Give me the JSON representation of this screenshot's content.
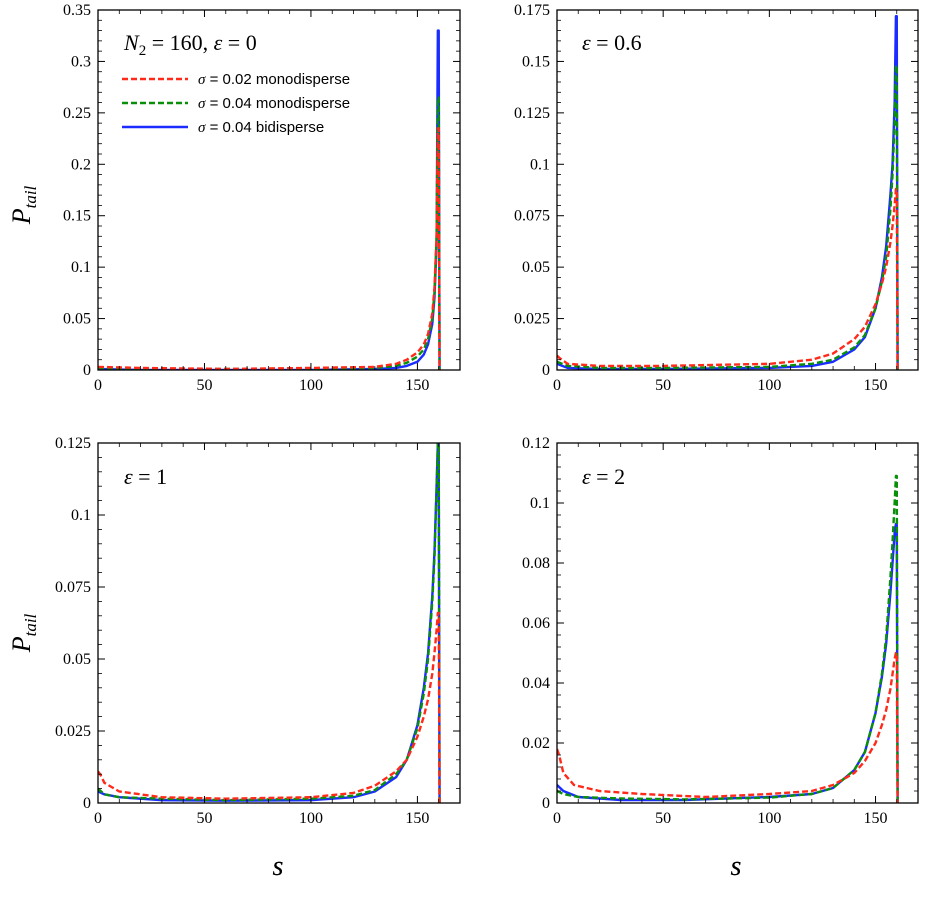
{
  "colors": {
    "red": "#ff2a1a",
    "green": "#0a8f0a",
    "blue": "#1a2cff"
  },
  "legend": [
    {
      "greek": "σ",
      "label": " = 0.02 monodisperse",
      "color": "#ff2a1a",
      "style": "dashed"
    },
    {
      "greek": "σ",
      "label": " = 0.04 monodisperse",
      "color": "#0a8f0a",
      "style": "dashed"
    },
    {
      "greek": "σ",
      "label": " = 0.04 bidisperse",
      "color": "#1a2cff",
      "style": "solid"
    }
  ],
  "chart_data": [
    {
      "type": "line",
      "annotation": {
        "prefix": "N",
        "sub": "2",
        "text": " = 160, ",
        "greek": "ε",
        "tail": " = 0"
      },
      "ylabel": {
        "main": "P",
        "sub": "tail"
      },
      "xlabel": "",
      "xlim": [
        0,
        170
      ],
      "ylim": [
        0,
        0.35
      ],
      "xticks": [
        0,
        50,
        100,
        150
      ],
      "yticks": [
        0,
        0.05,
        0.1,
        0.15,
        0.2,
        0.25,
        0.3,
        0.35
      ],
      "ytick_labels": [
        "0",
        "0.05",
        "0.1",
        "0.15",
        "0.2",
        "0.25",
        "0.3",
        "0.35"
      ],
      "legend": "top-left",
      "series": [
        {
          "color": "blue",
          "style": "solid",
          "x": [
            0,
            20,
            60,
            100,
            130,
            140,
            145,
            150,
            153,
            155,
            157,
            158,
            159,
            159.6,
            160,
            160.4
          ],
          "y": [
            0.001,
            0,
            0,
            0,
            0.001,
            0.002,
            0.004,
            0.008,
            0.015,
            0.025,
            0.045,
            0.07,
            0.12,
            0.33,
            0.33,
            0
          ]
        },
        {
          "color": "green",
          "style": "dashed",
          "x": [
            0,
            20,
            60,
            100,
            130,
            140,
            145,
            150,
            153,
            155,
            157,
            158,
            159,
            159.6,
            160,
            160.4
          ],
          "y": [
            0.002,
            0.001,
            0.001,
            0.001,
            0.002,
            0.004,
            0.007,
            0.013,
            0.02,
            0.03,
            0.05,
            0.075,
            0.13,
            0.265,
            0.265,
            0
          ]
        },
        {
          "color": "red",
          "style": "dashed",
          "x": [
            0,
            20,
            60,
            100,
            130,
            140,
            145,
            150,
            153,
            155,
            157,
            158,
            159,
            159.6,
            160,
            160.4
          ],
          "y": [
            0.003,
            0.002,
            0.001,
            0.002,
            0.003,
            0.006,
            0.01,
            0.017,
            0.025,
            0.035,
            0.055,
            0.08,
            0.13,
            0.235,
            0.235,
            0
          ]
        }
      ]
    },
    {
      "type": "line",
      "annotation": {
        "prefix": "",
        "sub": "",
        "text": "",
        "greek": "ε",
        "tail": " = 0.6"
      },
      "ylabel": {
        "main": "",
        "sub": ""
      },
      "xlabel": "s",
      "xlim": [
        0,
        170
      ],
      "ylim": [
        0,
        0.175
      ],
      "xticks": [
        0,
        50,
        100,
        150
      ],
      "yticks": [
        0,
        0.025,
        0.05,
        0.075,
        0.1,
        0.125,
        0.15,
        0.175
      ],
      "ytick_labels": [
        "0",
        "0.025",
        "0.05",
        "0.075",
        "0.1",
        "0.125",
        "0.15",
        "0.175"
      ],
      "legend": "none",
      "series": [
        {
          "color": "blue",
          "style": "solid",
          "x": [
            0,
            5,
            20,
            50,
            100,
            120,
            130,
            140,
            145,
            150,
            153,
            155,
            157,
            158,
            159,
            159.6,
            160,
            160.4
          ],
          "y": [
            0.003,
            0.001,
            0.0005,
            0.0005,
            0.001,
            0.002,
            0.004,
            0.01,
            0.016,
            0.03,
            0.045,
            0.06,
            0.085,
            0.1,
            0.13,
            0.172,
            0.172,
            0
          ]
        },
        {
          "color": "green",
          "style": "dashed",
          "x": [
            0,
            5,
            20,
            50,
            100,
            120,
            130,
            140,
            145,
            150,
            153,
            155,
            157,
            158,
            159,
            159.6,
            160,
            160.4
          ],
          "y": [
            0.004,
            0.002,
            0.001,
            0.001,
            0.0015,
            0.003,
            0.005,
            0.011,
            0.017,
            0.03,
            0.043,
            0.055,
            0.078,
            0.095,
            0.12,
            0.148,
            0.148,
            0
          ]
        },
        {
          "color": "red",
          "style": "dashed",
          "x": [
            0,
            1,
            5,
            20,
            50,
            100,
            120,
            130,
            140,
            145,
            150,
            153,
            155,
            157,
            158,
            159,
            159.6,
            160,
            160.4
          ],
          "y": [
            0.007,
            0.006,
            0.003,
            0.002,
            0.002,
            0.003,
            0.005,
            0.008,
            0.015,
            0.021,
            0.032,
            0.042,
            0.05,
            0.062,
            0.07,
            0.08,
            0.088,
            0.088,
            0
          ]
        }
      ]
    },
    {
      "type": "line",
      "annotation": {
        "prefix": "",
        "sub": "",
        "text": "",
        "greek": "ε",
        "tail": " = 1"
      },
      "ylabel": {
        "main": "P",
        "sub": "tail"
      },
      "xlabel": "",
      "xlim": [
        0,
        170
      ],
      "ylim": [
        0,
        0.125
      ],
      "xticks": [
        0,
        50,
        100,
        150
      ],
      "yticks": [
        0,
        0.025,
        0.05,
        0.075,
        0.1,
        0.125
      ],
      "ytick_labels": [
        "0",
        "0.025",
        "0.05",
        "0.075",
        "0.1",
        "0.125"
      ],
      "legend": "none",
      "series": [
        {
          "color": "blue",
          "style": "solid",
          "x": [
            0,
            3,
            10,
            30,
            60,
            100,
            120,
            130,
            140,
            145,
            150,
            153,
            155,
            157,
            158,
            159,
            159.6,
            160,
            160.4
          ],
          "y": [
            0.004,
            0.003,
            0.002,
            0.001,
            0.0008,
            0.001,
            0.002,
            0.004,
            0.009,
            0.015,
            0.027,
            0.04,
            0.052,
            0.072,
            0.087,
            0.11,
            0.125,
            0.125,
            0
          ]
        },
        {
          "color": "green",
          "style": "dashed",
          "x": [
            0,
            3,
            10,
            30,
            60,
            100,
            120,
            130,
            140,
            145,
            150,
            153,
            155,
            157,
            158,
            159,
            159.6,
            160,
            160.4
          ],
          "y": [
            0.005,
            0.003,
            0.002,
            0.0015,
            0.001,
            0.0015,
            0.0025,
            0.0045,
            0.01,
            0.015,
            0.026,
            0.038,
            0.05,
            0.07,
            0.085,
            0.108,
            0.125,
            0.125,
            0
          ]
        },
        {
          "color": "red",
          "style": "dashed",
          "x": [
            0,
            1,
            3,
            10,
            30,
            60,
            100,
            120,
            130,
            140,
            145,
            150,
            153,
            155,
            157,
            158,
            159,
            159.6,
            160,
            160.4
          ],
          "y": [
            0.011,
            0.01,
            0.007,
            0.004,
            0.002,
            0.0015,
            0.002,
            0.0035,
            0.006,
            0.011,
            0.015,
            0.023,
            0.03,
            0.036,
            0.045,
            0.052,
            0.06,
            0.066,
            0.066,
            0
          ]
        }
      ]
    },
    {
      "type": "line",
      "annotation": {
        "prefix": "",
        "sub": "",
        "text": "",
        "greek": "ε",
        "tail": " = 2"
      },
      "ylabel": {
        "main": "",
        "sub": ""
      },
      "xlabel": "s",
      "xlim": [
        0,
        170
      ],
      "ylim": [
        0,
        0.12
      ],
      "xticks": [
        0,
        50,
        100,
        150
      ],
      "yticks": [
        0,
        0.02,
        0.04,
        0.06,
        0.08,
        0.1,
        0.12
      ],
      "ytick_labels": [
        "0",
        "0.02",
        "0.04",
        "0.06",
        "0.08",
        "0.1",
        "0.12"
      ],
      "legend": "none",
      "series": [
        {
          "color": "blue",
          "style": "solid",
          "x": [
            0,
            3,
            10,
            30,
            60,
            100,
            120,
            130,
            140,
            145,
            150,
            153,
            155,
            157,
            158,
            159,
            159.6,
            160,
            160.4
          ],
          "y": [
            0.006,
            0.004,
            0.002,
            0.001,
            0.001,
            0.002,
            0.003,
            0.005,
            0.011,
            0.017,
            0.03,
            0.042,
            0.053,
            0.07,
            0.08,
            0.09,
            0.093,
            0.093,
            0
          ]
        },
        {
          "color": "green",
          "style": "dashed",
          "x": [
            0,
            3,
            10,
            30,
            60,
            100,
            120,
            130,
            140,
            145,
            150,
            153,
            155,
            157,
            158,
            159,
            159.6,
            160,
            160.4
          ],
          "y": [
            0.004,
            0.003,
            0.002,
            0.0015,
            0.0012,
            0.0018,
            0.003,
            0.005,
            0.011,
            0.017,
            0.03,
            0.043,
            0.055,
            0.075,
            0.087,
            0.1,
            0.109,
            0.109,
            0
          ]
        },
        {
          "color": "red",
          "style": "dashed",
          "x": [
            0,
            1,
            3,
            8,
            20,
            40,
            70,
            100,
            120,
            130,
            140,
            145,
            150,
            153,
            155,
            157,
            158,
            159,
            159.6,
            160,
            160.4
          ],
          "y": [
            0.018,
            0.016,
            0.01,
            0.006,
            0.004,
            0.003,
            0.002,
            0.003,
            0.004,
            0.006,
            0.01,
            0.014,
            0.02,
            0.026,
            0.031,
            0.038,
            0.043,
            0.048,
            0.05,
            0.05,
            0
          ]
        }
      ]
    }
  ]
}
